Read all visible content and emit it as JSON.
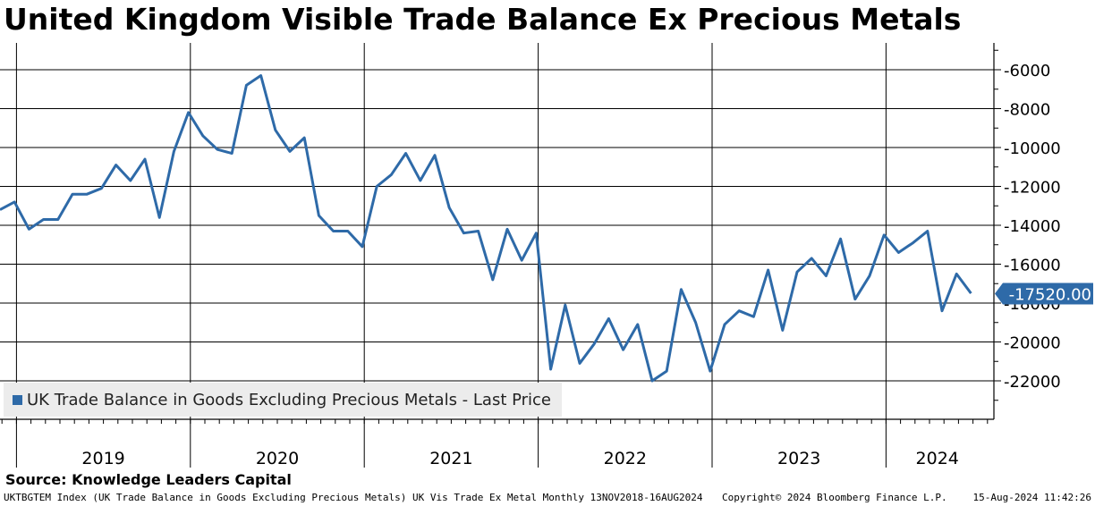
{
  "chart_data": {
    "type": "line",
    "title": "United Kingdom Visible Trade Balance Ex Precious Metals",
    "source": "Source: Knowledge Leaders Capital",
    "series": [
      {
        "name": "UK Trade Balance in Goods Excluding Precious Metals - Last Price",
        "color": "#2e6aa8",
        "values": [
          -13200,
          -12800,
          -14200,
          -13700,
          -13700,
          -12400,
          -12400,
          -12100,
          -10900,
          -11700,
          -10600,
          -13600,
          -10200,
          -8200,
          -9400,
          -10100,
          -10300,
          -6800,
          -6300,
          -9100,
          -10200,
          -9500,
          -13500,
          -14300,
          -14300,
          -15100,
          -12000,
          -11400,
          -10300,
          -11700,
          -10400,
          -13100,
          -14400,
          -14300,
          -16800,
          -14200,
          -15800,
          -14400,
          -21400,
          -18100,
          -21100,
          -20100,
          -18800,
          -20400,
          -19100,
          -22000,
          -21500,
          -17300,
          -19000,
          -21500,
          -19100,
          -18400,
          -18700,
          -16300,
          -19400,
          -16400,
          -15700,
          -16600,
          -14700,
          -17800,
          -16600,
          -14500,
          -15400,
          -14900,
          -14300,
          -18400,
          -16500,
          -17500
        ]
      }
    ],
    "x_start": "2018-11",
    "frequency": "monthly",
    "x_tick_labels": [
      "2019",
      "2020",
      "2021",
      "2022",
      "2023",
      "2024"
    ],
    "y_ticks": [
      -6000,
      -8000,
      -10000,
      -12000,
      -14000,
      -16000,
      -18000,
      -20000,
      -22000
    ],
    "y_tick_labels": [
      "-6000",
      "-8000",
      "-10000",
      "-12000",
      "-14000",
      "-16000",
      "-18000",
      "-20000",
      "-22000"
    ],
    "ylim": [
      -24000,
      -5000
    ],
    "last_value_label": "-17520.00",
    "grid": true,
    "legend_position": "bottom-left",
    "y_axis_side": "right"
  },
  "footer": {
    "left": "UKTBGTEM Index (UK Trade Balance in Goods Excluding Precious Metals) UK Vis Trade Ex Metal  Monthly 13NOV2018-16AUG2024",
    "middle": "Copyright© 2024 Bloomberg Finance L.P.",
    "right": "15-Aug-2024 11:42:26"
  }
}
